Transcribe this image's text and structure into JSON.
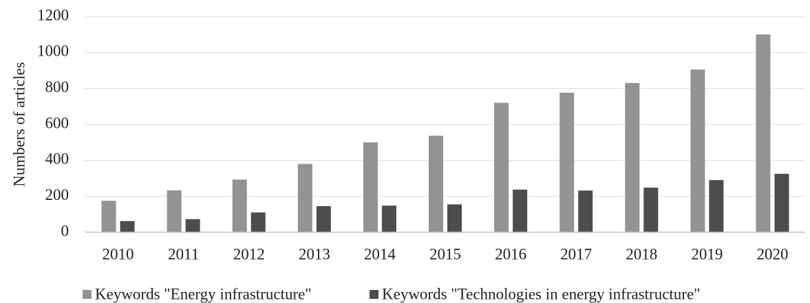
{
  "chart_data": {
    "type": "bar",
    "y_label": "Numbers of articles",
    "categories": [
      "2010",
      "2011",
      "2012",
      "2013",
      "2014",
      "2015",
      "2016",
      "2017",
      "2018",
      "2019",
      "2020"
    ],
    "series": [
      {
        "name": "Keywords \"Energy infrastructure\"",
        "color": "#939393",
        "values": [
          175,
          233,
          293,
          380,
          500,
          537,
          720,
          776,
          830,
          905,
          1100
        ]
      },
      {
        "name": "Keywords \"Technologies in energy infrastructure\"",
        "color": "#4d4d4e",
        "values": [
          62,
          73,
          110,
          145,
          148,
          155,
          237,
          232,
          248,
          290,
          325
        ]
      }
    ],
    "ylim": [
      0,
      1200
    ],
    "yticks": [
      0,
      200,
      400,
      600,
      800,
      1000,
      1200
    ],
    "grid": true,
    "legend": "bottom"
  }
}
